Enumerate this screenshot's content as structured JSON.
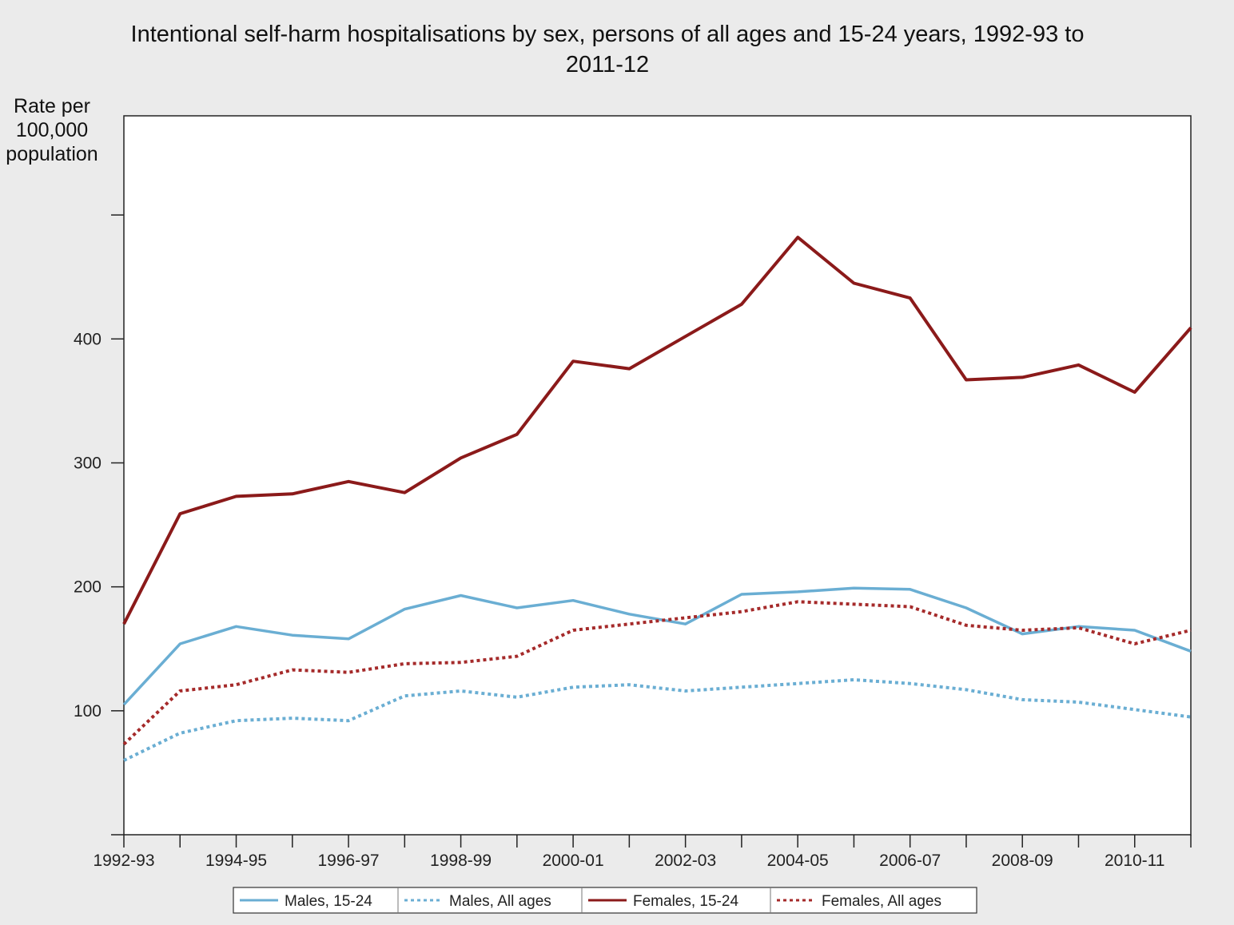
{
  "chart_data": {
    "type": "line",
    "title": "Intentional self-harm hospitalisations by sex, persons of all ages and 15-24 years, 1992-93 to\n2011-12",
    "ylabel": "Rate per\n100,000\npopulation",
    "xlabel": "",
    "ylim": [
      0,
      580
    ],
    "y_ticks": [
      0,
      100,
      200,
      300,
      400,
      500
    ],
    "y_tick_labels": [
      "",
      "100",
      "200",
      "300",
      "400",
      ""
    ],
    "x": [
      "1992-93",
      "1993-94",
      "1994-95",
      "1995-96",
      "1996-97",
      "1997-98",
      "1998-99",
      "1999-00",
      "2000-01",
      "2001-02",
      "2002-03",
      "2003-04",
      "2004-05",
      "2005-06",
      "2006-07",
      "2007-08",
      "2008-09",
      "2009-10",
      "2010-11",
      "2011-12"
    ],
    "x_tick_labels": [
      "1992-93",
      "",
      "1994-95",
      "",
      "1996-97",
      "",
      "1998-99",
      "",
      "2000-01",
      "",
      "2002-03",
      "",
      "2004-05",
      "",
      "2006-07",
      "",
      "2008-09",
      "",
      "2010-11",
      ""
    ],
    "grid": false,
    "legend_position": "bottom",
    "series": [
      {
        "name": "Males, 15-24",
        "style": "solid",
        "color": "#6aaed3",
        "values": [
          105,
          154,
          168,
          161,
          158,
          182,
          193,
          183,
          189,
          178,
          170,
          194,
          196,
          199,
          198,
          183,
          162,
          168,
          165,
          148
        ]
      },
      {
        "name": "Males, All ages",
        "style": "dotted",
        "color": "#6aaed3",
        "values": [
          60,
          82,
          92,
          94,
          92,
          112,
          116,
          111,
          119,
          121,
          116,
          119,
          122,
          125,
          122,
          117,
          109,
          107,
          101,
          95
        ]
      },
      {
        "name": "Females, 15-24",
        "style": "solid",
        "color": "#8b1a1a",
        "values": [
          170,
          259,
          273,
          275,
          285,
          276,
          304,
          323,
          382,
          376,
          402,
          428,
          482,
          445,
          433,
          367,
          369,
          379,
          357,
          409
        ]
      },
      {
        "name": "Females, All ages",
        "style": "dotted",
        "color": "#a52a2a",
        "values": [
          73,
          116,
          121,
          133,
          131,
          138,
          139,
          144,
          165,
          170,
          175,
          180,
          188,
          186,
          184,
          169,
          165,
          167,
          154,
          165
        ]
      }
    ]
  }
}
